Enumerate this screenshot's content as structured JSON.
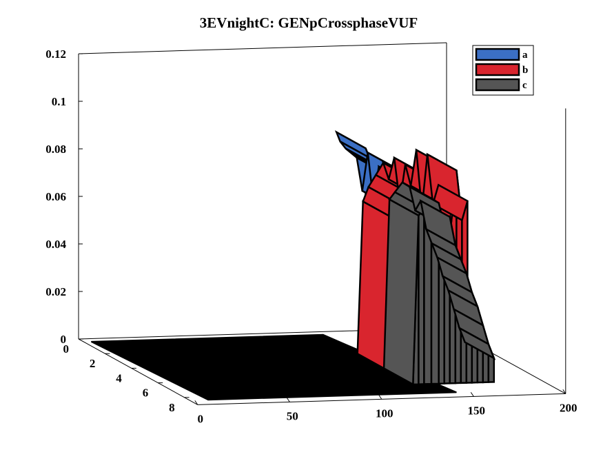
{
  "chart_data": {
    "type": "area",
    "title": "3EVnightC: GENpCrossphaseVUF",
    "xlabel": "",
    "ylabel": "",
    "zlabel": "",
    "x_ticks": [
      "0",
      "50",
      "100",
      "150",
      "200"
    ],
    "y_ticks": [
      "0",
      "2",
      "4",
      "6",
      "8"
    ],
    "z_ticks": [
      "0",
      "0.02",
      "0.04",
      "0.06",
      "0.08",
      "0.1",
      "0.12"
    ],
    "xlim": [
      0,
      200
    ],
    "ylim": [
      0,
      9
    ],
    "zlim": [
      0,
      0.12
    ],
    "legend_position": "top-right",
    "colors": {
      "a": "#3b6fc4",
      "b": "#d9252e",
      "c": "#555555",
      "floor": "#000000"
    },
    "series": [
      {
        "name": "a",
        "color": "#3b6fc4",
        "row": 1,
        "x": [
          133,
          135,
          138,
          141,
          144,
          147,
          150,
          153,
          156,
          159,
          162,
          165,
          168,
          171,
          174
        ],
        "values": [
          0.087,
          0.083,
          0.08,
          0.078,
          0.076,
          0.062,
          0.078,
          0.058,
          0.072,
          0.06,
          0.055,
          0.07,
          0.056,
          0.063,
          0.05
        ]
      },
      {
        "name": "b",
        "color": "#d9252e",
        "row": 3,
        "x": [
          0,
          130,
          133,
          136,
          140,
          144,
          147,
          150,
          153,
          156,
          159,
          162,
          165,
          168,
          171,
          174
        ],
        "values": [
          0,
          0,
          0.064,
          0.07,
          0.075,
          0.08,
          0.073,
          0.082,
          0.063,
          0.079,
          0.07,
          0.085,
          0.06,
          0.083,
          0.062,
          0.07
        ]
      },
      {
        "name": "c",
        "color": "#555555",
        "row": 5,
        "x": [
          0,
          130,
          133,
          136,
          140,
          144,
          147,
          150,
          153,
          156,
          159,
          162,
          165,
          168,
          171,
          174
        ],
        "values": [
          0,
          0,
          0.071,
          0.074,
          0.078,
          0.076,
          0.066,
          0.07,
          0.058,
          0.052,
          0.046,
          0.038,
          0.032,
          0.024,
          0.016,
          0.01
        ]
      }
    ]
  }
}
